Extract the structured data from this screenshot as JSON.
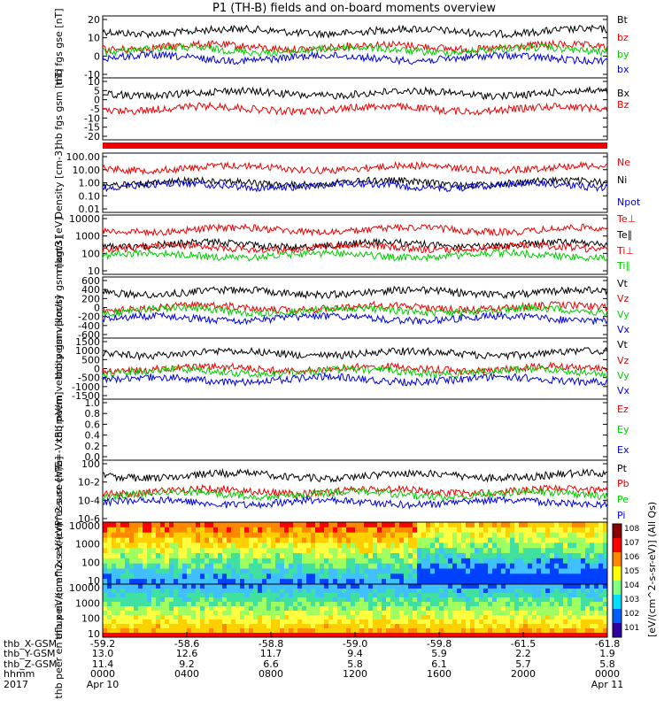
{
  "title": "P1 (TH-B) fields and on-board moments overview",
  "colors": {
    "black": "#000000",
    "red": "#ee0000",
    "green": "#00cc00",
    "blue": "#0000dd"
  },
  "chart_data": [
    {
      "type": "line",
      "ylabel": "thb fgs gse [nT]",
      "ylim": [
        -20,
        20
      ],
      "ytick_labels": [
        "20",
        "10",
        "0",
        "-10"
      ],
      "series": [
        {
          "name": "Bt",
          "color": "black"
        },
        {
          "name": "bz",
          "color": "red"
        },
        {
          "name": "by",
          "color": "green"
        },
        {
          "name": "bx",
          "color": "blue"
        }
      ]
    },
    {
      "type": "line",
      "ylabel": "thb fgs gsm [nT]",
      "ylim": [
        -20,
        12
      ],
      "ytick_labels": [
        "10",
        "5",
        "0",
        "-5",
        "-10",
        "-15",
        "-20"
      ],
      "series": [
        {
          "name": "Bx",
          "color": "black"
        },
        {
          "name": "Bz",
          "color": "red"
        }
      ]
    },
    {
      "type": "line",
      "ylabel": "Density [cm-3]",
      "yscale": "log",
      "ytick_labels": [
        "100.00",
        "10.00",
        "1.00",
        "0.10",
        "0.01"
      ],
      "series": [
        {
          "name": "Ne",
          "color": "red"
        },
        {
          "name": "Ni",
          "color": "black"
        },
        {
          "name": "Npot",
          "color": "blue"
        }
      ]
    },
    {
      "type": "line",
      "ylabel": "magt3 [eV]",
      "yscale": "log",
      "ytick_labels": [
        "10000",
        "1000",
        "100",
        "10"
      ],
      "series": [
        {
          "name": "Te⊥",
          "color": "red"
        },
        {
          "name": "Te∥",
          "color": "black"
        },
        {
          "name": "Ti⊥",
          "color": "red"
        },
        {
          "name": "Ti∥",
          "color": "green"
        }
      ]
    },
    {
      "type": "line",
      "ylabel": "thb peim velocity gsm [km/s]",
      "ylim": [
        -600,
        600
      ],
      "ytick_labels": [
        "600",
        "400",
        "200",
        "0",
        "-200",
        "-400",
        "-600"
      ],
      "series": [
        {
          "name": "Vt",
          "color": "black"
        },
        {
          "name": "Vz",
          "color": "red"
        },
        {
          "name": "Vy",
          "color": "green"
        },
        {
          "name": "Vx",
          "color": "blue"
        }
      ]
    },
    {
      "type": "line",
      "ylabel": "thb peem velocity gsm [km/s]",
      "ylim": [
        -1500,
        1500
      ],
      "ytick_labels": [
        "1500",
        "1000",
        "500",
        "0",
        "-500",
        "-1000",
        "-1500"
      ],
      "series": [
        {
          "name": "Vt",
          "color": "black"
        },
        {
          "name": "Vz",
          "color": "red"
        },
        {
          "name": "Vy",
          "color": "green"
        },
        {
          "name": "Vx",
          "color": "blue"
        }
      ]
    },
    {
      "type": "line",
      "ylabel": "E=-VxB [mV/m]",
      "ylim": [
        0,
        1
      ],
      "ytick_labels": [
        "1.0",
        "0.8",
        "0.6",
        "0.4",
        "0.2",
        "0.0"
      ],
      "series": [
        {
          "name": "Ez",
          "color": "red"
        },
        {
          "name": "Ey",
          "color": "green"
        },
        {
          "name": "Ex",
          "color": "blue"
        }
      ]
    },
    {
      "type": "line",
      "ylabel": "Pressure [nPa]",
      "yscale": "log",
      "ytick_labels": [
        "10^0",
        "10^-2",
        "10^-4",
        "10^-6"
      ],
      "series": [
        {
          "name": "Pt",
          "color": "black"
        },
        {
          "name": "Pb",
          "color": "red"
        },
        {
          "name": "Pe",
          "color": "green"
        },
        {
          "name": "Pi",
          "color": "blue"
        }
      ]
    },
    {
      "type": "heatmap",
      "ylabel": "thb peir en eflux eV/(cm^2-s-sr-eV)",
      "yscale": "log",
      "ytick_labels": [
        "10000",
        "1000",
        "100",
        "10"
      ],
      "colorbar_ticks": [
        "10^8",
        "10^7",
        "10^6",
        "10^5",
        "10^4",
        "10^3",
        "10^2",
        "10^1"
      ]
    },
    {
      "type": "heatmap",
      "ylabel": "thb peer en eflux eV/(cm^2-s-sr-eV)",
      "yscale": "log",
      "ytick_labels": [
        "10000",
        "1000",
        "100",
        "10"
      ],
      "colorbar_ticks": [
        "10^8",
        "10^7",
        "10^6",
        "10^5",
        "10^4",
        "10^3",
        "10^2"
      ]
    }
  ],
  "colorbar_label": "[eV/(cm^2-s-sr-eV)] (All Qs)",
  "footer": {
    "row_labels": [
      "thb_X-GSM",
      "thb_Y-GSM",
      "thb_Z-GSM",
      "hhmm",
      "2017"
    ],
    "columns": [
      {
        "x": "-59.2",
        "y": "13.0",
        "z": "11.4",
        "time": "0000",
        "date": "Apr 10"
      },
      {
        "x": "-58.6",
        "y": "12.6",
        "z": "9.2",
        "time": "0400",
        "date": ""
      },
      {
        "x": "-58.8",
        "y": "11.7",
        "z": "6.6",
        "time": "0800",
        "date": ""
      },
      {
        "x": "-59.0",
        "y": "9.4",
        "z": "5.8",
        "time": "1200",
        "date": ""
      },
      {
        "x": "-59.8",
        "y": "5.9",
        "z": "6.1",
        "time": "1600",
        "date": ""
      },
      {
        "x": "-61.5",
        "y": "2.2",
        "z": "5.7",
        "time": "2000",
        "date": ""
      },
      {
        "x": "-61.8",
        "y": "1.9",
        "z": "5.8",
        "time": "0000",
        "date": "Apr 11"
      }
    ]
  }
}
